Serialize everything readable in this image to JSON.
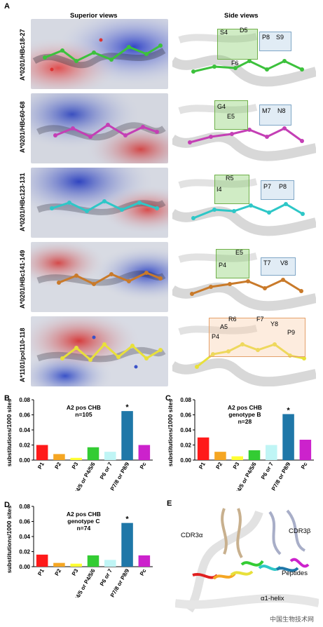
{
  "panel_a": {
    "letter": "A",
    "superior_title": "Superior views",
    "side_title": "Side views",
    "rows": [
      {
        "label": "A*0201/HBc18-27",
        "color": "#3cc13c",
        "residues": [
          "S4",
          "D5",
          "F6",
          "P8",
          "S9"
        ]
      },
      {
        "label": "A*0201/HBc60-68",
        "color": "#c43fb5",
        "residues": [
          "E5",
          "G4",
          "M7",
          "N8"
        ]
      },
      {
        "label": "A*0201/HBc123-131",
        "color": "#2ec7c7",
        "residues": [
          "R5",
          "I4",
          "P7",
          "P8"
        ]
      },
      {
        "label": "A*0201/HBc141-149",
        "color": "#c97a2a",
        "residues": [
          "P4",
          "E5",
          "T7",
          "V8"
        ]
      },
      {
        "label": "A*1101/pol110-118",
        "color": "#e8e03a",
        "residues": [
          "R6",
          "A5",
          "F7",
          "Y8",
          "P9",
          "P4"
        ]
      }
    ]
  },
  "chart_data": [
    {
      "letter": "B",
      "type": "bar",
      "annotation": [
        "A2 pos CHB",
        "n=105"
      ],
      "ylabel": "substitutions/1000 sites",
      "ylim": [
        0,
        0.08
      ],
      "yticks": [
        "0.00",
        "0.02",
        "0.04",
        "0.06",
        "0.08"
      ],
      "categories": [
        "P1",
        "P2",
        "P3",
        "P4/5 or P4/5/6",
        "P6 or 7",
        "P7/8 or P8/9",
        "Pc"
      ],
      "values": [
        0.02,
        0.008,
        0.003,
        0.017,
        0.011,
        0.065,
        0.02
      ],
      "colors": [
        "#ff1a1a",
        "#f5a623",
        "#ffff33",
        "#33cc33",
        "#bff5f5",
        "#1f77a8",
        "#cc22cc"
      ],
      "star": "*",
      "star_index": 5
    },
    {
      "letter": "C",
      "type": "bar",
      "annotation": [
        "A2 pos CHB",
        "genotype B",
        "n=28"
      ],
      "ylabel": "substitutions/1000 sites",
      "ylim": [
        0,
        0.08
      ],
      "yticks": [
        "0.00",
        "0.02",
        "0.04",
        "0.06",
        "0.08"
      ],
      "categories": [
        "P1",
        "P2",
        "P3",
        "P4/5 or P4/5/6",
        "P6 or 7",
        "P7/8 or P8/9",
        "Pc"
      ],
      "values": [
        0.03,
        0.011,
        0.005,
        0.013,
        0.02,
        0.061,
        0.027
      ],
      "colors": [
        "#ff1a1a",
        "#f5a623",
        "#ffff33",
        "#33cc33",
        "#bff5f5",
        "#1f77a8",
        "#cc22cc"
      ],
      "star": "*",
      "star_index": 5
    },
    {
      "letter": "D",
      "type": "bar",
      "annotation": [
        "A2 pos CHB",
        "genotype C",
        "n=74"
      ],
      "ylabel": "substitutions/1000 sites",
      "ylim": [
        0,
        0.08
      ],
      "yticks": [
        "0.00",
        "0.02",
        "0.04",
        "0.06",
        "0.08"
      ],
      "categories": [
        "P1",
        "P2",
        "P3",
        "P4/5 or P4/5/6",
        "P6 or 7",
        "P7/8 or P8/9",
        "Pc"
      ],
      "values": [
        0.016,
        0.005,
        0.004,
        0.015,
        0.009,
        0.058,
        0.015
      ],
      "colors": [
        "#ff1a1a",
        "#f5a623",
        "#ffff33",
        "#33cc33",
        "#bff5f5",
        "#1f77a8",
        "#cc22cc"
      ],
      "star": "*",
      "star_index": 5
    }
  ],
  "panel_e": {
    "letter": "E",
    "labels": {
      "cdr3a": "CDR3α",
      "cdr3b": "CDR3β",
      "peptides": "Peptides",
      "helix": "α1-helix"
    }
  },
  "watermark": "中国生物技术网"
}
